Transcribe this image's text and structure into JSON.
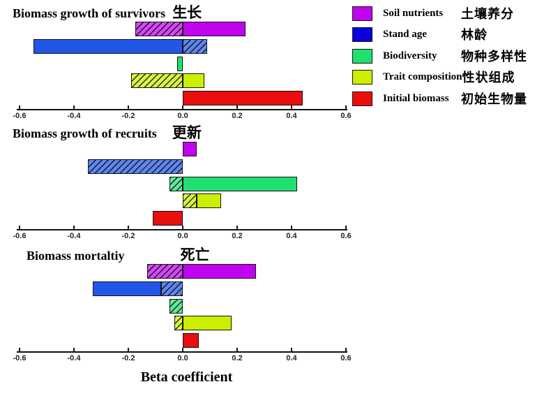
{
  "xlabel": "Beta coefficient",
  "colors": {
    "soil_nutrients": "#C203EF",
    "stand_age_bar": "#2257E6",
    "stand_age_legend": "#0A00DC",
    "biodiversity": "#22E070",
    "trait_composition": "#CCEE00",
    "initial_biomass": "#EA0E0E",
    "axis": "#111111"
  },
  "legend": {
    "items": [
      {
        "label": "Soil nutrients",
        "zh": "土壤养分",
        "color": "#C203EF"
      },
      {
        "label": "Stand age",
        "zh": "林龄",
        "color": "#0A00DC"
      },
      {
        "label": "Biodiversity",
        "zh": "物种多样性",
        "color": "#22E070"
      },
      {
        "label": "Trait composition",
        "zh": "性状组成",
        "color": "#CCEE00"
      },
      {
        "label": "Initial biomass",
        "zh": "初始生物量",
        "color": "#EA0E0E"
      }
    ]
  },
  "chart_data": [
    {
      "type": "bar",
      "title_en": "Biomass growth of survivors",
      "title_zh": "生长",
      "xlim": [
        -0.6,
        0.6
      ],
      "tick_values": [
        -0.6,
        -0.4,
        -0.2,
        0,
        0.2,
        0.4,
        0.6
      ],
      "tick_labels": [
        "-0.6",
        "-0.4",
        "-0.2",
        "0.0",
        "0.2",
        "0.4",
        "0.6"
      ],
      "bars": [
        {
          "name": "Soil nutrients",
          "color": "#C203EF",
          "segments": [
            {
              "from": -0.175,
              "to": 0,
              "hatched": true
            },
            {
              "from": 0,
              "to": 0.23,
              "hatched": false
            }
          ]
        },
        {
          "name": "Stand age",
          "color": "#2257E6",
          "segments": [
            {
              "from": -0.55,
              "to": 0,
              "hatched": false
            },
            {
              "from": 0,
              "to": 0.09,
              "hatched": true
            }
          ]
        },
        {
          "name": "Biodiversity",
          "color": "#22E070",
          "segments": [
            {
              "from": -0.02,
              "to": 0,
              "hatched": false
            }
          ]
        },
        {
          "name": "Trait composition",
          "color": "#CCEE00",
          "segments": [
            {
              "from": -0.19,
              "to": 0,
              "hatched": true
            },
            {
              "from": 0,
              "to": 0.08,
              "hatched": false
            }
          ]
        },
        {
          "name": "Initial biomass",
          "color": "#EA0E0E",
          "segments": [
            {
              "from": 0,
              "to": 0.44,
              "hatched": false
            }
          ]
        }
      ]
    },
    {
      "type": "bar",
      "title_en": "Biomass growth of recruits",
      "title_zh": "更新",
      "xlim": [
        -0.6,
        0.6
      ],
      "tick_values": [
        -0.6,
        -0.4,
        -0.2,
        0,
        0.2,
        0.4,
        0.6
      ],
      "tick_labels": [
        "-0.6",
        "-0.4",
        "-0.2",
        "0.0",
        "0.2",
        "0.4",
        "0.6"
      ],
      "bars": [
        {
          "name": "Soil nutrients",
          "color": "#C203EF",
          "segments": [
            {
              "from": 0,
              "to": 0.05,
              "hatched": false
            }
          ]
        },
        {
          "name": "Stand age",
          "color": "#2257E6",
          "segments": [
            {
              "from": -0.35,
              "to": 0,
              "hatched": true
            }
          ]
        },
        {
          "name": "Biodiversity",
          "color": "#22E070",
          "segments": [
            {
              "from": -0.05,
              "to": 0,
              "hatched": true
            },
            {
              "from": 0,
              "to": 0.42,
              "hatched": false
            }
          ]
        },
        {
          "name": "Trait composition",
          "color": "#CCEE00",
          "segments": [
            {
              "from": 0,
              "to": 0.05,
              "hatched": true
            },
            {
              "from": 0.05,
              "to": 0.14,
              "hatched": false
            }
          ]
        },
        {
          "name": "Initial biomass",
          "color": "#EA0E0E",
          "segments": [
            {
              "from": -0.11,
              "to": 0,
              "hatched": false
            }
          ]
        }
      ]
    },
    {
      "type": "bar",
      "title_en": "Biomass mortaltiy",
      "title_zh": "死亡",
      "xlim": [
        -0.6,
        0.6
      ],
      "tick_values": [
        -0.6,
        -0.4,
        -0.2,
        0,
        0.2,
        0.4,
        0.6
      ],
      "tick_labels": [
        "-0.6",
        "-0.4",
        "-0.2",
        "0.0",
        "0.2",
        "0.4",
        "0.6"
      ],
      "bars": [
        {
          "name": "Soil nutrients",
          "color": "#C203EF",
          "segments": [
            {
              "from": -0.13,
              "to": 0,
              "hatched": true
            },
            {
              "from": 0,
              "to": 0.27,
              "hatched": false
            }
          ]
        },
        {
          "name": "Stand age",
          "color": "#2257E6",
          "segments": [
            {
              "from": -0.33,
              "to": -0.08,
              "hatched": false
            },
            {
              "from": -0.08,
              "to": 0,
              "hatched": true
            }
          ]
        },
        {
          "name": "Biodiversity",
          "color": "#22E070",
          "segments": [
            {
              "from": -0.05,
              "to": 0,
              "hatched": true
            }
          ]
        },
        {
          "name": "Trait composition",
          "color": "#CCEE00",
          "segments": [
            {
              "from": -0.03,
              "to": 0,
              "hatched": true
            },
            {
              "from": 0,
              "to": 0.18,
              "hatched": false
            }
          ]
        },
        {
          "name": "Initial biomass",
          "color": "#EA0E0E",
          "segments": [
            {
              "from": 0,
              "to": 0.06,
              "hatched": false
            }
          ]
        }
      ]
    }
  ]
}
